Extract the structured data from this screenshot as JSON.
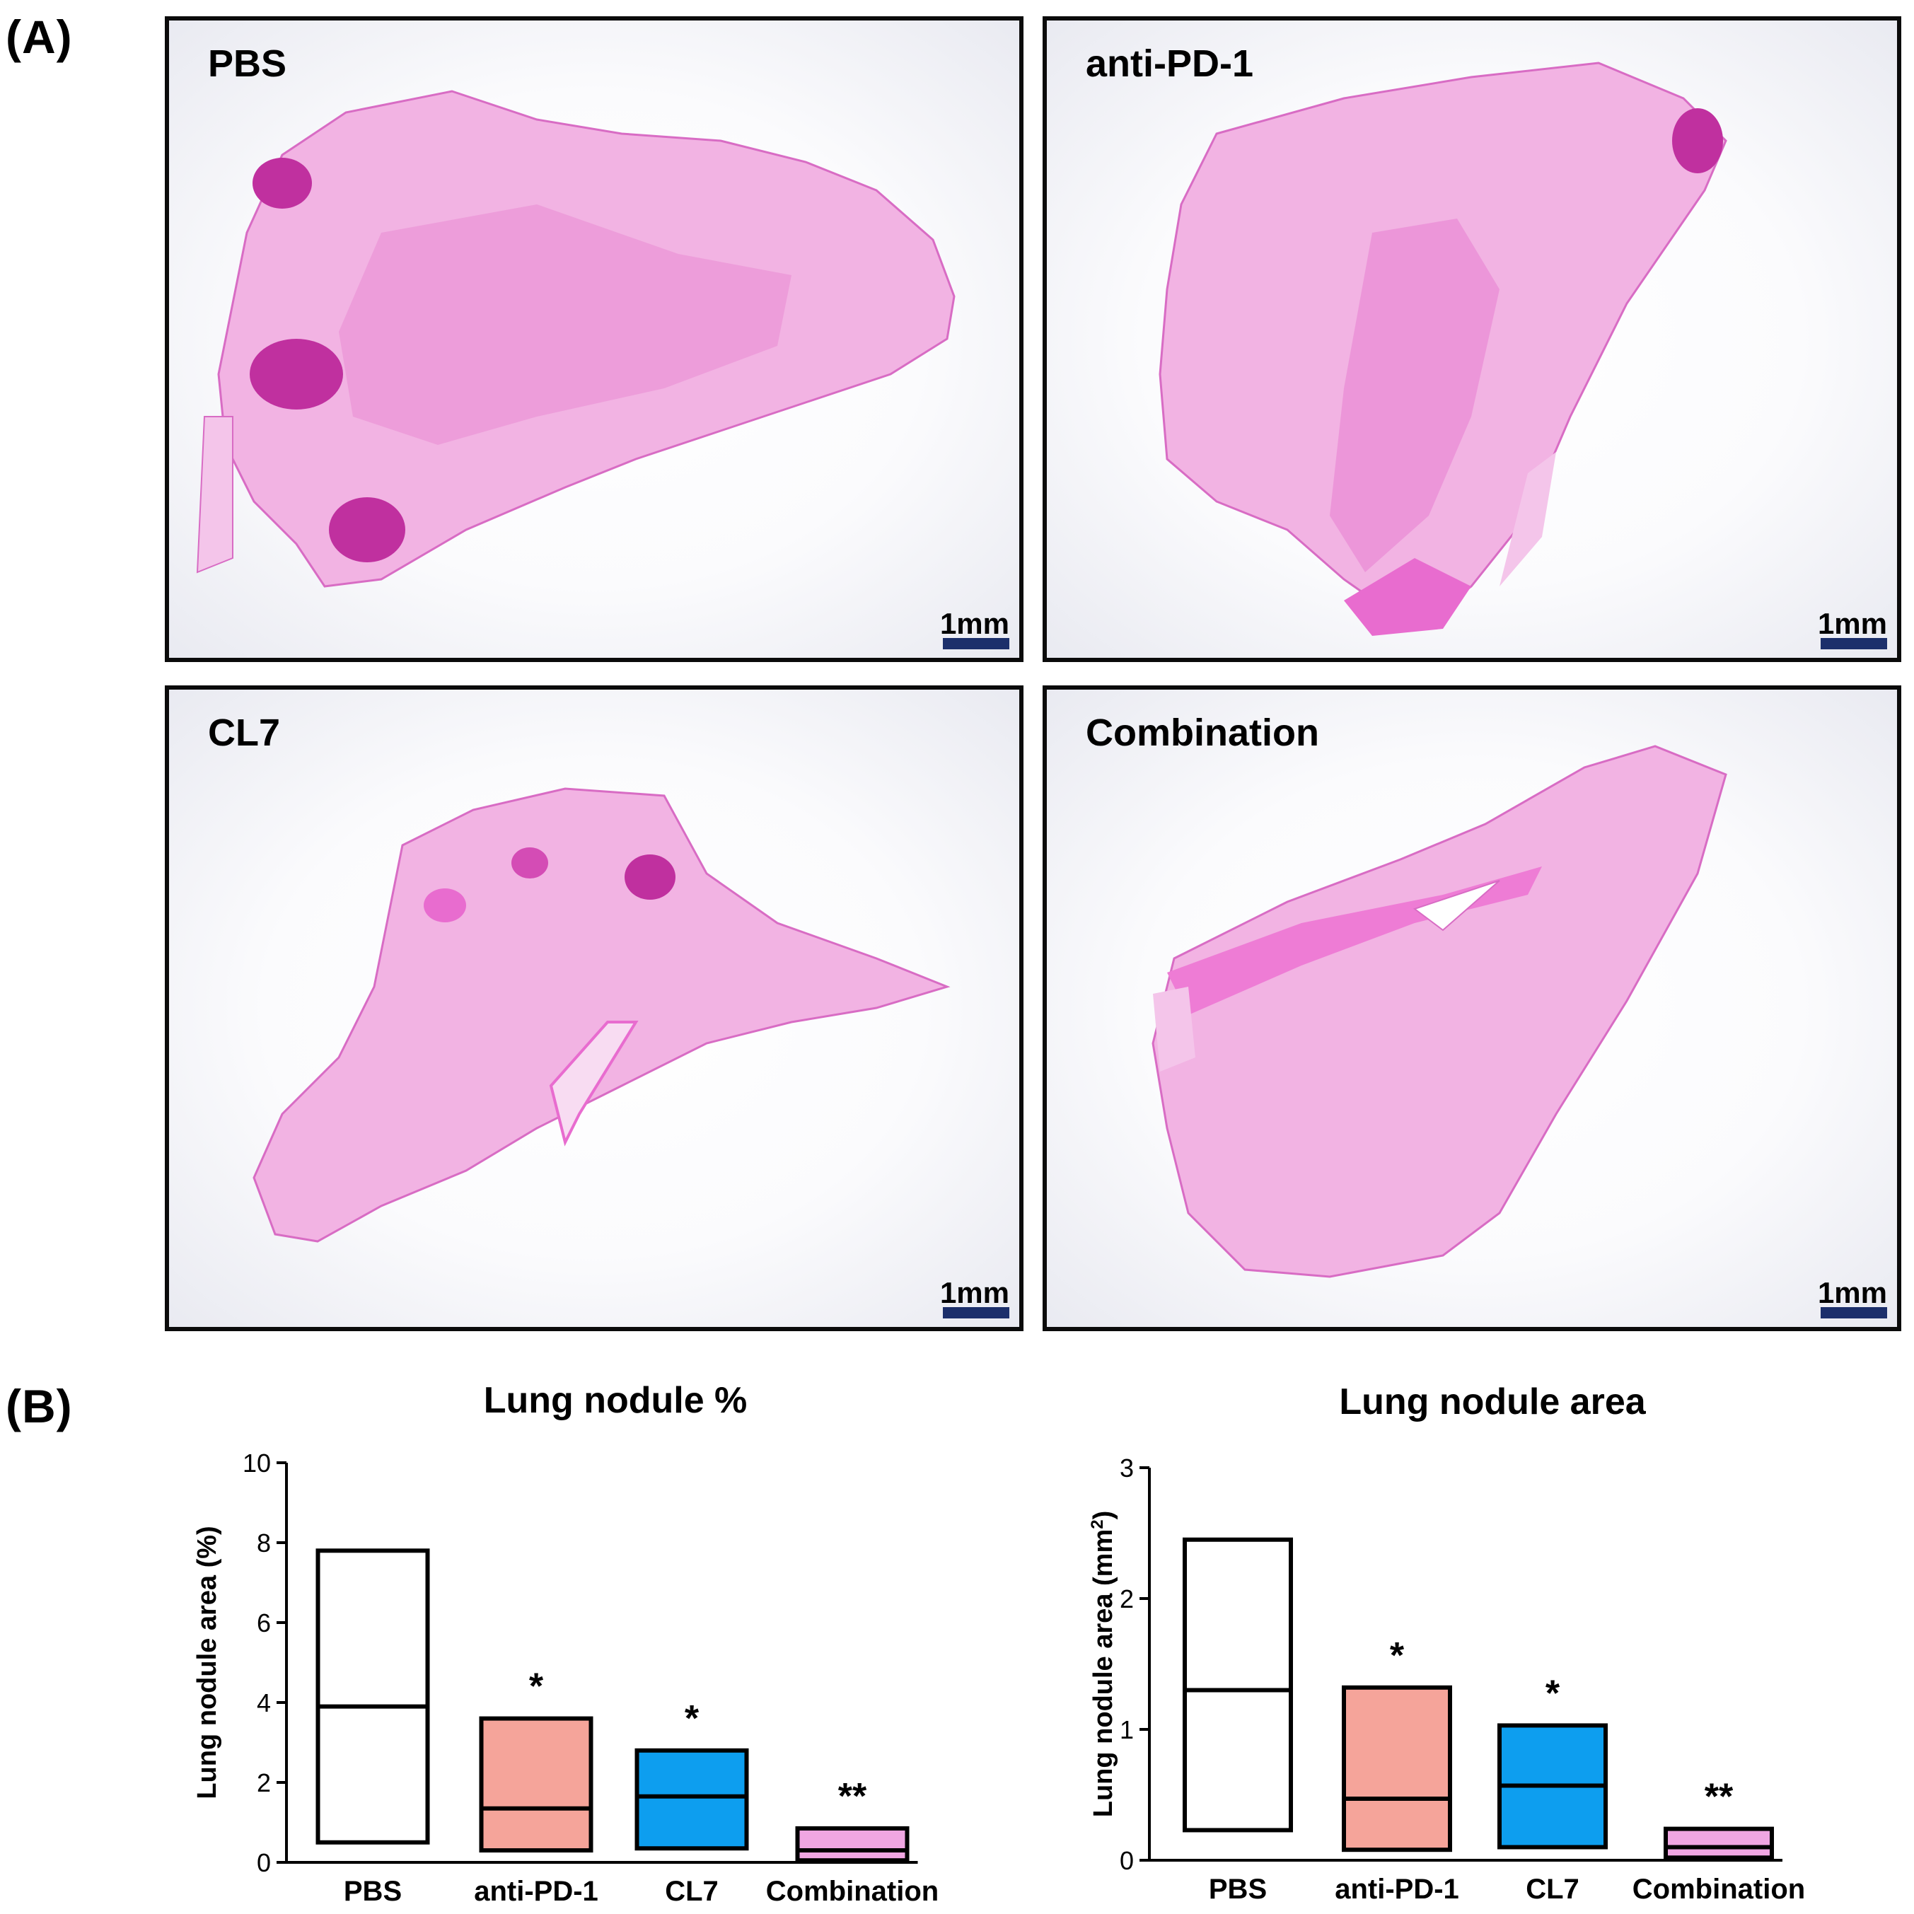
{
  "panel_labels": {
    "a": "(A)",
    "b": "(B)"
  },
  "micrographs": [
    {
      "title": "PBS",
      "scale_label": "1mm"
    },
    {
      "title": "anti-PD-1",
      "scale_label": "1mm"
    },
    {
      "title": "CL7",
      "scale_label": "1mm"
    },
    {
      "title": "Combination",
      "scale_label": "1mm"
    }
  ],
  "colors": {
    "stain": "#e25fc0",
    "stain_dark": "#c0309f",
    "scalebar": "#1c2f6b"
  },
  "chart_data": [
    {
      "type": "box",
      "title": "Lung nodule %",
      "ylabel": "Lung nodule area (%)",
      "xlabel": "",
      "ylim": [
        0,
        10
      ],
      "yticks": [
        "0",
        "2",
        "4",
        "6",
        "8",
        "10"
      ],
      "categories": [
        "PBS",
        "anti-PD-1",
        "CL7",
        "Combination"
      ],
      "series": [
        {
          "name": "PBS",
          "min": 0.5,
          "median": 3.9,
          "max": 7.8,
          "color": "#ffffff",
          "sig": ""
        },
        {
          "name": "anti-PD-1",
          "min": 0.3,
          "median": 1.35,
          "max": 3.6,
          "color": "#f5a49a",
          "sig": "*"
        },
        {
          "name": "CL7",
          "min": 0.35,
          "median": 1.65,
          "max": 2.8,
          "color": "#0d9eef",
          "sig": "*"
        },
        {
          "name": "Combination",
          "min": 0.05,
          "median": 0.3,
          "max": 0.85,
          "color": "#f0a6e2",
          "sig": "**"
        }
      ]
    },
    {
      "type": "box",
      "title": "Lung nodule area",
      "ylabel": "Lung nodule area (mm²)",
      "ylabel_main": "Lung nodule area (mm",
      "ylabel_sup": "2",
      "ylabel_end": ")",
      "xlabel": "",
      "ylim": [
        0,
        3
      ],
      "yticks": [
        "0",
        "1",
        "2",
        "3"
      ],
      "categories": [
        "PBS",
        "anti-PD-1",
        "CL7",
        "Combination"
      ],
      "series": [
        {
          "name": "PBS",
          "min": 0.23,
          "median": 1.3,
          "max": 2.45,
          "color": "#ffffff",
          "sig": ""
        },
        {
          "name": "anti-PD-1",
          "min": 0.08,
          "median": 0.47,
          "max": 1.32,
          "color": "#f5a49a",
          "sig": "*"
        },
        {
          "name": "CL7",
          "min": 0.1,
          "median": 0.57,
          "max": 1.03,
          "color": "#0d9eef",
          "sig": "*"
        },
        {
          "name": "Combination",
          "min": 0.02,
          "median": 0.1,
          "max": 0.24,
          "color": "#f0a6e2",
          "sig": "**"
        }
      ]
    }
  ]
}
